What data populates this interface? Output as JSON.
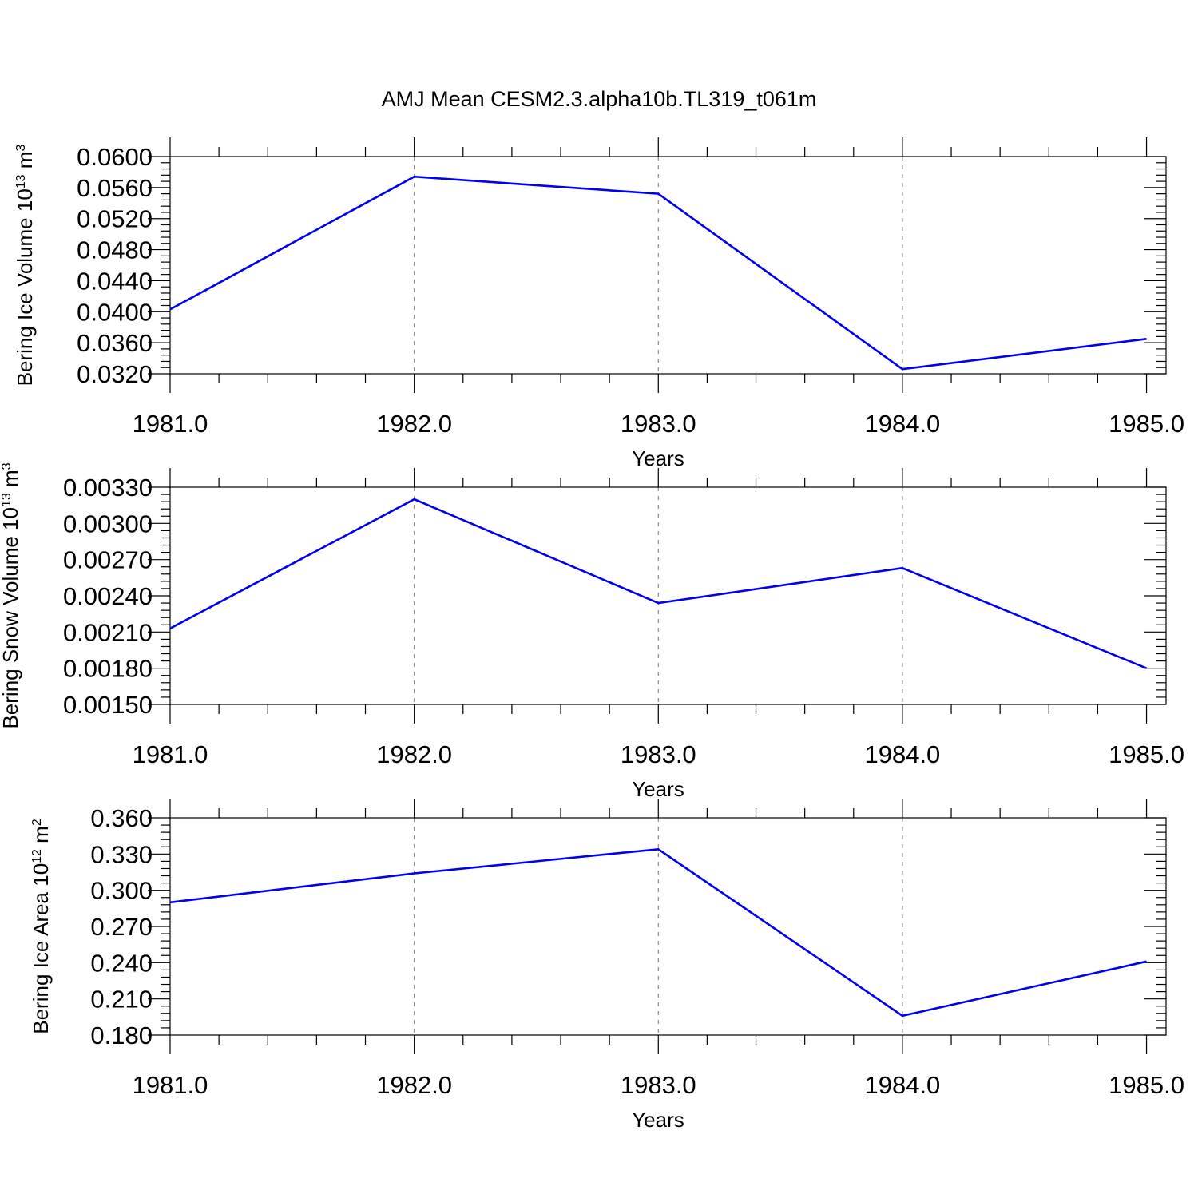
{
  "title": "AMJ Mean CESM2.3.alpha10b.TL319_t061m",
  "colors": {
    "series": "#0000ee",
    "grid": "#888888",
    "axis": "#000000"
  },
  "chart_data": [
    {
      "type": "line",
      "title": "AMJ Mean CESM2.3.alpha10b.TL319_t061m",
      "xlabel": "Years",
      "ylabel": {
        "text": "Bering Ice Volume 10",
        "exp": "13",
        "unit": " m",
        "unit_exp": "3"
      },
      "x": [
        1981,
        1982,
        1983,
        1984,
        1985
      ],
      "y": [
        0.0403,
        0.0574,
        0.0552,
        0.0326,
        0.0365
      ],
      "xlim": [
        1981,
        1985.08
      ],
      "ylim": [
        0.032,
        0.06
      ],
      "xticks": [
        "1981.0",
        "1982.0",
        "1983.0",
        "1984.0",
        "1985.0"
      ],
      "yticks": [
        "0.0600",
        "0.0560",
        "0.0520",
        "0.0480",
        "0.0440",
        "0.0400",
        "0.0360",
        "0.0320"
      ],
      "ytick_values": [
        0.06,
        0.056,
        0.052,
        0.048,
        0.044,
        0.04,
        0.036,
        0.032
      ],
      "grid": "vertical dashed"
    },
    {
      "type": "line",
      "xlabel": "Years",
      "ylabel": {
        "text": "Bering Snow Volume 10",
        "exp": "13",
        "unit": " m",
        "unit_exp": "3"
      },
      "x": [
        1981,
        1982,
        1983,
        1984,
        1985
      ],
      "y": [
        0.00213,
        0.0032,
        0.00234,
        0.00263,
        0.0018
      ],
      "xlim": [
        1981,
        1985.08
      ],
      "ylim": [
        0.0015,
        0.0033
      ],
      "xticks": [
        "1981.0",
        "1982.0",
        "1983.0",
        "1984.0",
        "1985.0"
      ],
      "yticks": [
        "0.00330",
        "0.00300",
        "0.00270",
        "0.00240",
        "0.00210",
        "0.00180",
        "0.00150"
      ],
      "ytick_values": [
        0.0033,
        0.003,
        0.0027,
        0.0024,
        0.0021,
        0.0018,
        0.0015
      ],
      "grid": "vertical dashed"
    },
    {
      "type": "line",
      "xlabel": "Years",
      "ylabel": {
        "text": "Bering Ice Area 10",
        "exp": "12",
        "unit": " m",
        "unit_exp": "2"
      },
      "x": [
        1981,
        1982,
        1983,
        1984,
        1985
      ],
      "y": [
        0.29,
        0.314,
        0.334,
        0.196,
        0.241
      ],
      "xlim": [
        1981,
        1985.08
      ],
      "ylim": [
        0.18,
        0.36
      ],
      "xticks": [
        "1981.0",
        "1982.0",
        "1983.0",
        "1984.0",
        "1985.0"
      ],
      "yticks": [
        "0.360",
        "0.330",
        "0.300",
        "0.270",
        "0.240",
        "0.210",
        "0.180"
      ],
      "ytick_values": [
        0.36,
        0.33,
        0.3,
        0.27,
        0.24,
        0.21,
        0.18
      ],
      "grid": "vertical dashed"
    }
  ]
}
